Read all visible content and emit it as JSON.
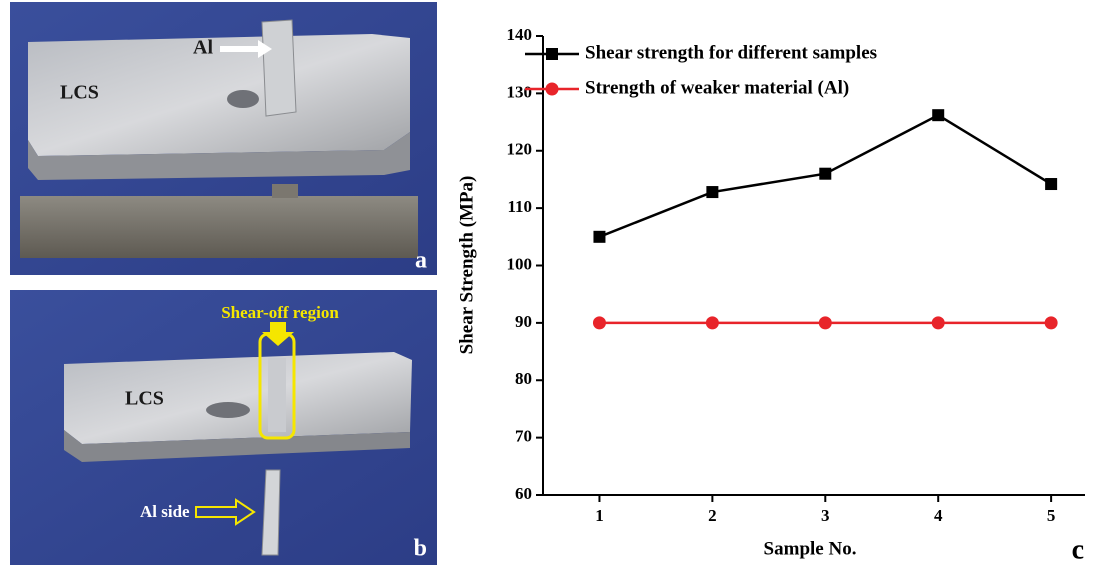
{
  "chart_data": {
    "type": "line",
    "x_label": "Sample No.",
    "y_label": "Shear Strength (MPa)",
    "x": [
      1,
      2,
      3,
      4,
      5
    ],
    "series": [
      {
        "name": "Shear strength for different samples",
        "color": "#000000",
        "marker": "square",
        "values": [
          105,
          112.8,
          116,
          126.2,
          114.2
        ]
      },
      {
        "name": "Strength of weaker material (Al)",
        "color": "#e8242a",
        "marker": "circle",
        "values": [
          90,
          90,
          90,
          90,
          90
        ]
      }
    ],
    "xlim": [
      0.5,
      5.3
    ],
    "ylim": [
      60,
      140
    ],
    "xticks": [
      1,
      2,
      3,
      4,
      5
    ],
    "yticks": [
      60,
      70,
      80,
      90,
      100,
      110,
      120,
      130,
      140
    ],
    "legend": "upper left",
    "panel_label": "c"
  },
  "panels": {
    "a": {
      "label": "a",
      "annotations": [
        "Al",
        "LCS"
      ]
    },
    "b": {
      "label": "b",
      "annotations": [
        "Shear-off region",
        "LCS",
        "Al side"
      ]
    }
  }
}
